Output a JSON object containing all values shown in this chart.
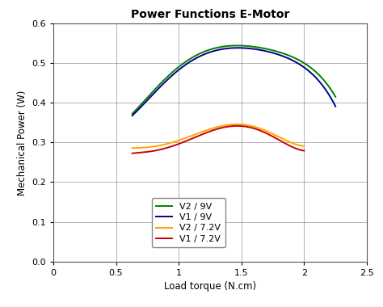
{
  "title": "Power Functions E-Motor",
  "xlabel": "Load torque (N.cm)",
  "ylabel": "Mechanical Power (W)",
  "xlim": [
    0,
    2.5
  ],
  "ylim": [
    0,
    0.6
  ],
  "xticks": [
    0,
    0.5,
    1.0,
    1.5,
    2.0,
    2.5
  ],
  "yticks": [
    0,
    0.1,
    0.2,
    0.3,
    0.4,
    0.5,
    0.6
  ],
  "series": [
    {
      "label": "V2 / 9V",
      "color": "#008000",
      "x": [
        0.63,
        0.75,
        0.9,
        1.0,
        1.1,
        1.2,
        1.3,
        1.4,
        1.5,
        1.6,
        1.7,
        1.8,
        1.9,
        2.0,
        2.1,
        2.2,
        2.25
      ],
      "y": [
        0.375,
        0.408,
        0.462,
        0.495,
        0.515,
        0.528,
        0.537,
        0.542,
        0.543,
        0.54,
        0.536,
        0.529,
        0.519,
        0.505,
        0.47,
        0.435,
        0.42
      ]
    },
    {
      "label": "V1 / 9V",
      "color": "#00008B",
      "x": [
        0.63,
        0.75,
        0.9,
        1.0,
        1.1,
        1.2,
        1.3,
        1.4,
        1.5,
        1.6,
        1.7,
        1.8,
        1.9,
        2.0,
        2.1,
        2.2,
        2.25
      ],
      "y": [
        0.37,
        0.402,
        0.455,
        0.487,
        0.507,
        0.521,
        0.531,
        0.536,
        0.538,
        0.535,
        0.53,
        0.522,
        0.51,
        0.492,
        0.458,
        0.415,
        0.395
      ]
    },
    {
      "label": "V2 / 7.2V",
      "color": "#FFA500",
      "x": [
        0.63,
        0.75,
        0.9,
        1.0,
        1.1,
        1.2,
        1.3,
        1.4,
        1.5,
        1.6,
        1.7,
        1.8,
        1.9,
        2.0
      ],
      "y": [
        0.285,
        0.29,
        0.297,
        0.302,
        0.315,
        0.33,
        0.34,
        0.347,
        0.345,
        0.337,
        0.328,
        0.315,
        0.301,
        0.29
      ]
    },
    {
      "label": "V1 / 7.2V",
      "color": "#CC0000",
      "x": [
        0.63,
        0.75,
        0.9,
        1.0,
        1.1,
        1.2,
        1.3,
        1.4,
        1.5,
        1.6,
        1.7,
        1.8,
        1.9,
        2.0
      ],
      "y": [
        0.272,
        0.278,
        0.287,
        0.294,
        0.308,
        0.322,
        0.335,
        0.343,
        0.342,
        0.333,
        0.32,
        0.308,
        0.292,
        0.278
      ]
    }
  ],
  "background_color": "#ffffff",
  "grid_color": "#808080",
  "title_fontsize": 10,
  "label_fontsize": 8.5,
  "tick_fontsize": 8,
  "legend_fontsize": 8
}
